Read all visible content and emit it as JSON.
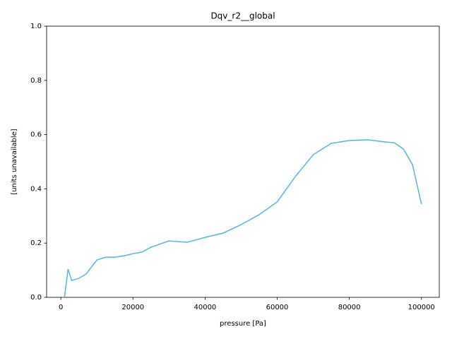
{
  "chart_data": {
    "type": "line",
    "title": "Dqv_r2__global",
    "xlabel": "pressure [Pa]",
    "ylabel": "[units unavailable]",
    "x": [
      1000,
      2000,
      3000,
      5000,
      7000,
      10000,
      12500,
      15000,
      17500,
      20000,
      22500,
      25000,
      30000,
      35000,
      40000,
      45000,
      50000,
      55000,
      60000,
      65000,
      70000,
      75000,
      80000,
      85000,
      90000,
      92500,
      95000,
      97500,
      100000
    ],
    "series": [
      {
        "name": "Dqv_r2__global",
        "color": "#56b4e9",
        "values": [
          0.0,
          0.104,
          0.062,
          0.07,
          0.086,
          0.138,
          0.148,
          0.148,
          0.153,
          0.161,
          0.167,
          0.185,
          0.208,
          0.203,
          0.221,
          0.237,
          0.268,
          0.305,
          0.352,
          0.445,
          0.526,
          0.568,
          0.578,
          0.581,
          0.573,
          0.57,
          0.547,
          0.49,
          0.344
        ]
      }
    ],
    "xlim": [
      -3950,
      104950
    ],
    "ylim": [
      0,
      1
    ],
    "xticks": [
      0,
      20000,
      40000,
      60000,
      80000,
      100000
    ],
    "yticks": [
      {
        "value": 0,
        "label": "0.0"
      },
      {
        "value": 0.2,
        "label": "0.2"
      },
      {
        "value": 0.4,
        "label": "0.4"
      },
      {
        "value": 0.6,
        "label": "0.6"
      },
      {
        "value": 0.8,
        "label": "0.8"
      },
      {
        "value": 1,
        "label": "1.0"
      }
    ],
    "grid": false
  }
}
